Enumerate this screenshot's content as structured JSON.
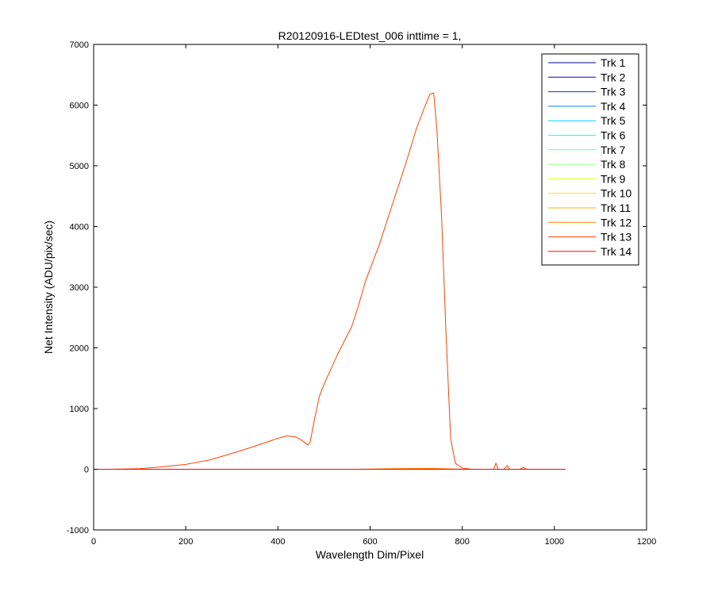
{
  "chart_data": {
    "type": "line",
    "title": "R20120916-LEDtest_006 inttime = 1,",
    "xlabel": "Wavelength Dim/Pixel",
    "ylabel": "Net Intensity (ADU/pix/sec)",
    "xlim": [
      0,
      1200
    ],
    "ylim": [
      -1000,
      7000
    ],
    "xticks": [
      "0",
      "200",
      "400",
      "600",
      "800",
      "1000",
      "1200"
    ],
    "yticks": [
      "-1000",
      "0",
      "1000",
      "2000",
      "3000",
      "4000",
      "5000",
      "6000",
      "7000"
    ],
    "grid": false,
    "legend_placement": "top-right",
    "series": [
      {
        "name": "Trk 1",
        "color": "#00008f",
        "x": [
          0,
          1024
        ],
        "y": [
          0,
          0
        ]
      },
      {
        "name": "Trk 2",
        "color": "#0000df",
        "x": [
          0,
          1024
        ],
        "y": [
          0,
          0
        ]
      },
      {
        "name": "Trk 3",
        "color": "#0030ff",
        "x": [
          0,
          1024
        ],
        "y": [
          0,
          0
        ]
      },
      {
        "name": "Trk 4",
        "color": "#0080ff",
        "x": [
          0,
          1024
        ],
        "y": [
          0,
          0
        ]
      },
      {
        "name": "Trk 5",
        "color": "#00cfff",
        "x": [
          0,
          1024
        ],
        "y": [
          0,
          0
        ]
      },
      {
        "name": "Trk 6",
        "color": "#20ffdf",
        "x": [
          0,
          1024
        ],
        "y": [
          0,
          0
        ]
      },
      {
        "name": "Trk 7",
        "color": "#70ff8f",
        "x": [
          0,
          1024
        ],
        "y": [
          0,
          0
        ]
      },
      {
        "name": "Trk 8",
        "color": "#90ff70",
        "x": [
          0,
          1024
        ],
        "y": [
          0,
          0
        ]
      },
      {
        "name": "Trk 9",
        "color": "#dfff20",
        "x": [
          0,
          1024
        ],
        "y": [
          0,
          0
        ]
      },
      {
        "name": "Trk 10",
        "color": "#ffdf00",
        "x": [
          0,
          1024
        ],
        "y": [
          0,
          0
        ]
      },
      {
        "name": "Trk 11",
        "color": "#ffb000",
        "x": [
          0,
          1024
        ],
        "y": [
          0,
          0
        ]
      },
      {
        "name": "Trk 12",
        "color": "#ff8000",
        "x": [
          0,
          570,
          650,
          730,
          760,
          800,
          1024
        ],
        "y": [
          0,
          0,
          10,
          15,
          10,
          0,
          0
        ]
      },
      {
        "name": "Trk 13",
        "color": "#ff4000",
        "x": [
          40,
          100,
          150,
          200,
          250,
          300,
          350,
          400,
          420,
          440,
          455,
          465,
          470,
          480,
          490,
          500,
          530,
          560,
          575,
          590,
          620,
          650,
          680,
          700,
          720,
          730,
          738,
          745,
          755,
          765,
          775,
          785,
          800,
          820,
          850,
          868,
          873,
          878,
          890,
          898,
          903,
          910,
          925,
          932,
          940,
          960,
          980,
          1000,
          1024
        ],
        "y": [
          0,
          10,
          40,
          80,
          150,
          260,
          380,
          510,
          550,
          530,
          460,
          400,
          450,
          850,
          1200,
          1400,
          1900,
          2350,
          2700,
          3100,
          3700,
          4400,
          5100,
          5600,
          6000,
          6180,
          6200,
          5600,
          4200,
          2200,
          500,
          100,
          20,
          0,
          0,
          0,
          100,
          0,
          0,
          60,
          0,
          0,
          0,
          30,
          0,
          0,
          0,
          0,
          0
        ]
      },
      {
        "name": "Trk 14",
        "color": "#ff0000",
        "x": [
          0,
          1024
        ],
        "y": [
          0,
          0
        ]
      }
    ]
  }
}
